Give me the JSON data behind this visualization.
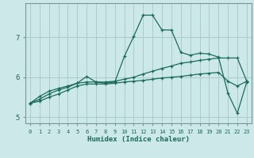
{
  "xlabel": "Humidex (Indice chaleur)",
  "background_color": "#cce8e8",
  "grid_color": "#aacccc",
  "line_color": "#1a6b5a",
  "xlim": [
    -0.5,
    23.5
  ],
  "ylim": [
    4.85,
    7.85
  ],
  "yticks": [
    5,
    6,
    7
  ],
  "xticks": [
    0,
    1,
    2,
    3,
    4,
    5,
    6,
    7,
    8,
    9,
    10,
    11,
    12,
    13,
    14,
    15,
    16,
    17,
    18,
    19,
    20,
    21,
    22,
    23
  ],
  "line1_y": [
    5.35,
    5.52,
    5.65,
    5.72,
    5.78,
    5.85,
    6.02,
    5.88,
    5.85,
    5.88,
    6.52,
    7.02,
    7.55,
    7.55,
    7.18,
    7.18,
    6.62,
    6.55,
    6.6,
    6.58,
    6.5,
    5.6,
    5.1,
    5.88
  ],
  "line2_y": [
    5.35,
    5.45,
    5.58,
    5.68,
    5.75,
    5.85,
    5.88,
    5.88,
    5.88,
    5.9,
    5.95,
    6.0,
    6.08,
    6.15,
    6.22,
    6.28,
    6.35,
    6.38,
    6.42,
    6.45,
    6.48,
    6.48,
    6.48,
    5.9
  ],
  "line3_y": [
    5.35,
    5.4,
    5.5,
    5.58,
    5.68,
    5.78,
    5.83,
    5.83,
    5.83,
    5.85,
    5.88,
    5.9,
    5.92,
    5.95,
    5.98,
    6.0,
    6.02,
    6.05,
    6.08,
    6.1,
    6.12,
    5.9,
    5.78,
    5.9
  ]
}
